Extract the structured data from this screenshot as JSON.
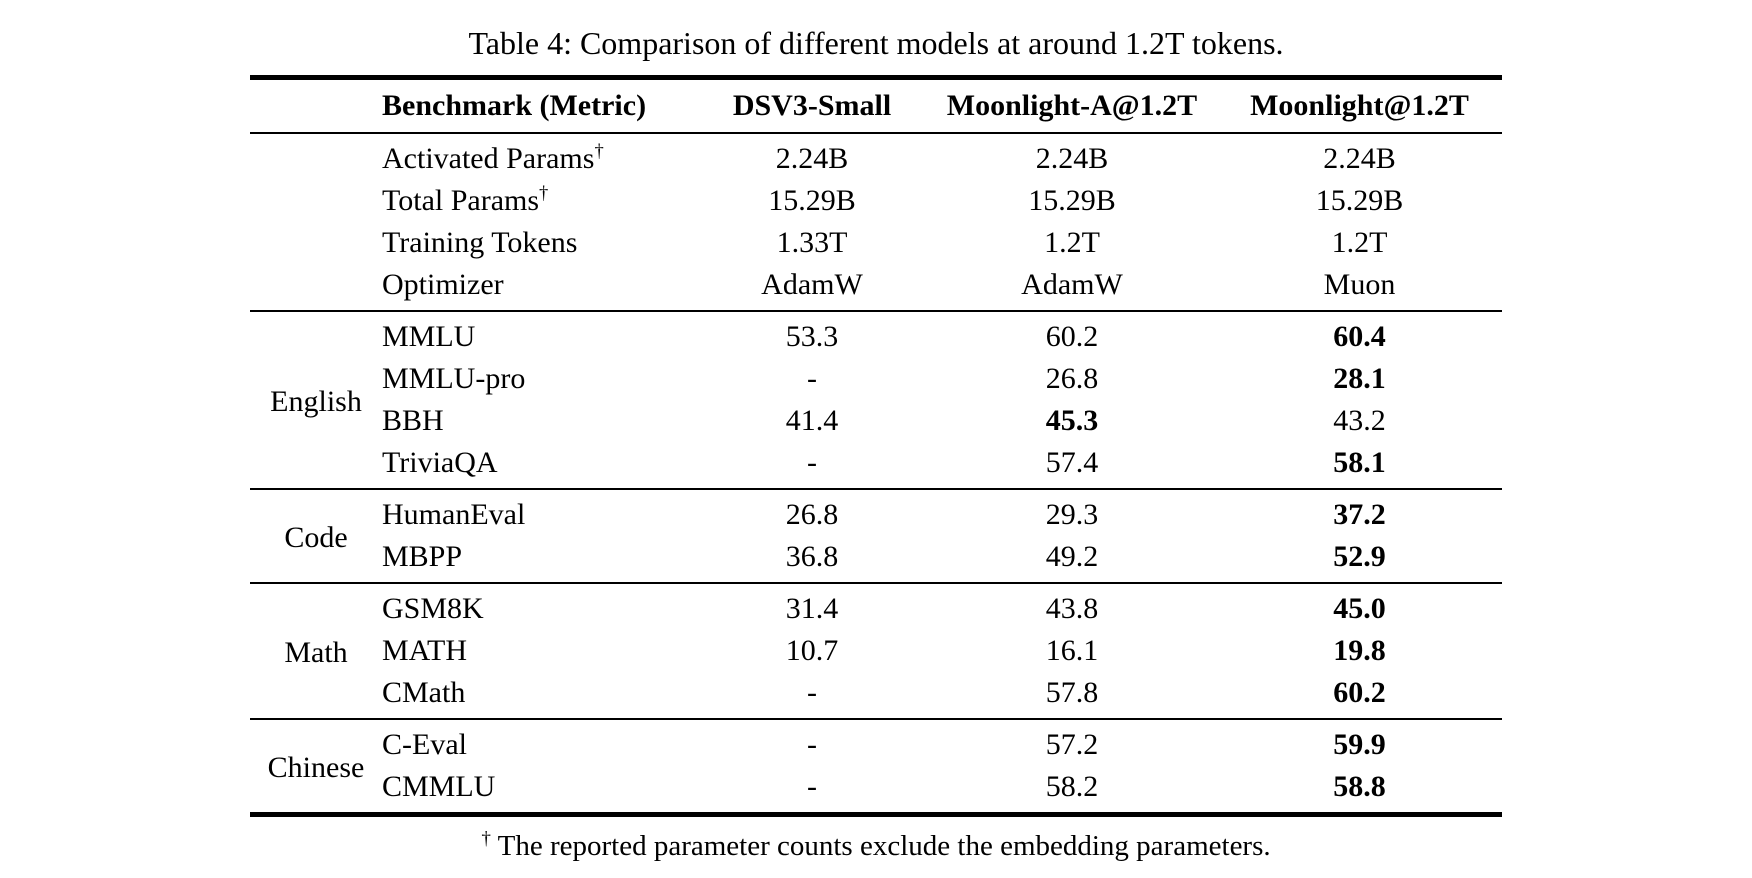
{
  "title": "Table 4: Comparison of different models at around 1.2T tokens.",
  "header": {
    "benchmark": "Benchmark (Metric)",
    "models": [
      "DSV3-Small",
      "Moonlight-A@1.2T",
      "Moonlight@1.2T"
    ]
  },
  "sections": [
    {
      "group": "",
      "rows": [
        {
          "metric": "Activated Params",
          "sup": "†",
          "values": [
            "2.24B",
            "2.24B",
            "2.24B"
          ],
          "bold": []
        },
        {
          "metric": "Total Params",
          "sup": "†",
          "values": [
            "15.29B",
            "15.29B",
            "15.29B"
          ],
          "bold": []
        },
        {
          "metric": "Training Tokens",
          "values": [
            "1.33T",
            "1.2T",
            "1.2T"
          ],
          "bold": []
        },
        {
          "metric": "Optimizer",
          "values": [
            "AdamW",
            "AdamW",
            "Muon"
          ],
          "bold": []
        }
      ]
    },
    {
      "group": "English",
      "rows": [
        {
          "metric": "MMLU",
          "values": [
            "53.3",
            "60.2",
            "60.4"
          ],
          "bold": [
            2
          ]
        },
        {
          "metric": "MMLU-pro",
          "values": [
            "-",
            "26.8",
            "28.1"
          ],
          "bold": [
            2
          ]
        },
        {
          "metric": "BBH",
          "values": [
            "41.4",
            "45.3",
            "43.2"
          ],
          "bold": [
            1
          ]
        },
        {
          "metric": "TriviaQA",
          "values": [
            "-",
            "57.4",
            "58.1"
          ],
          "bold": [
            2
          ]
        }
      ]
    },
    {
      "group": "Code",
      "rows": [
        {
          "metric": "HumanEval",
          "values": [
            "26.8",
            "29.3",
            "37.2"
          ],
          "bold": [
            2
          ]
        },
        {
          "metric": "MBPP",
          "values": [
            "36.8",
            "49.2",
            "52.9"
          ],
          "bold": [
            2
          ]
        }
      ]
    },
    {
      "group": "Math",
      "rows": [
        {
          "metric": "GSM8K",
          "values": [
            "31.4",
            "43.8",
            "45.0"
          ],
          "bold": [
            2
          ]
        },
        {
          "metric": "MATH",
          "values": [
            "10.7",
            "16.1",
            "19.8"
          ],
          "bold": [
            2
          ]
        },
        {
          "metric": "CMath",
          "values": [
            "-",
            "57.8",
            "60.2"
          ],
          "bold": [
            2
          ]
        }
      ]
    },
    {
      "group": "Chinese",
      "rows": [
        {
          "metric": "C-Eval",
          "values": [
            "-",
            "57.2",
            "59.9"
          ],
          "bold": [
            2
          ]
        },
        {
          "metric": "CMMLU",
          "values": [
            "-",
            "58.2",
            "58.8"
          ],
          "bold": [
            2
          ]
        }
      ]
    }
  ],
  "footnote": {
    "marker": "†",
    "text": "The reported parameter counts exclude the embedding parameters."
  }
}
